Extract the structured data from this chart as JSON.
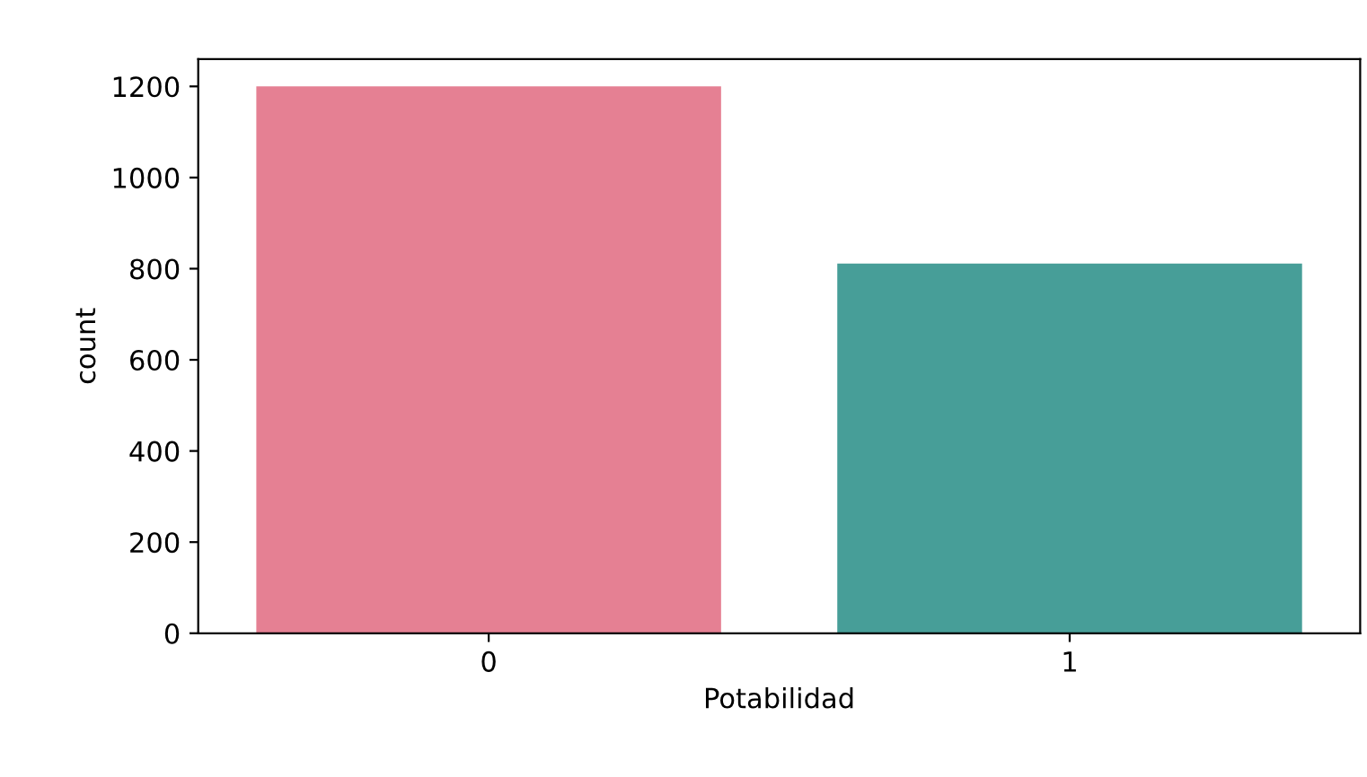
{
  "chart_data": {
    "type": "bar",
    "xlabel": "Potabilidad",
    "ylabel": "count",
    "categories": [
      "0",
      "1"
    ],
    "values": [
      1200,
      811
    ],
    "colors": [
      "#e58093",
      "#479e98"
    ],
    "ylim": [
      0,
      1260
    ],
    "yticks": [
      0,
      200,
      400,
      600,
      800,
      1000,
      1200
    ],
    "grid": false
  }
}
